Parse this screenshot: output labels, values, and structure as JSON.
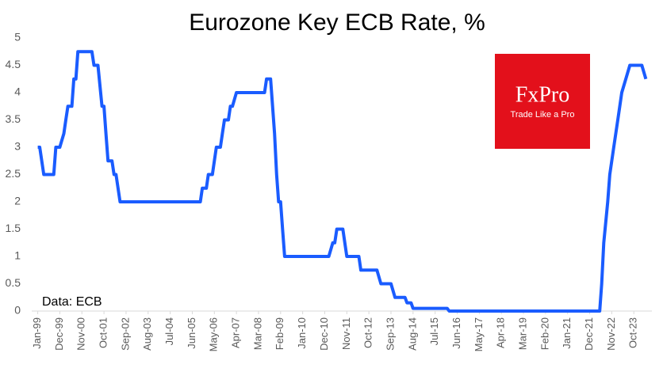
{
  "chart_data": {
    "type": "line",
    "title": "Eurozone Key ECB Rate, %",
    "annotation": "Data: ECB",
    "logo": {
      "name": "FxPro",
      "tagline": "Trade Like a Pro",
      "color": "#e3101b"
    },
    "x": [
      "Jan-99",
      "Feb-99",
      "Apr-99",
      "Sep-99",
      "Oct-99",
      "Dec-99",
      "Feb-00",
      "Mar-00",
      "Apr-00",
      "Jun-00",
      "Jul-00",
      "Aug-00",
      "Sep-00",
      "Apr-01",
      "May-01",
      "Jul-01",
      "Sep-01",
      "Oct-01",
      "Nov-01",
      "Dec-01",
      "Feb-02",
      "Mar-02",
      "Apr-02",
      "Jun-02",
      "Oct-05",
      "Nov-05",
      "Jan-06",
      "Feb-06",
      "Apr-06",
      "May-06",
      "Jun-06",
      "Aug-06",
      "Sep-06",
      "Oct-06",
      "Dec-06",
      "Jan-07",
      "Feb-07",
      "Apr-07",
      "Jun-08",
      "Jul-08",
      "Sep-08",
      "Oct-08",
      "Nov-08",
      "Dec-08",
      "Jan-09",
      "Feb-09",
      "Mar-09",
      "Apr-09",
      "Feb-11",
      "Apr-11",
      "May-11",
      "Jun-11",
      "Sep-11",
      "Oct-11",
      "Nov-11",
      "May-12",
      "Jun-12",
      "Feb-13",
      "Apr-13",
      "Sep-13",
      "Nov-13",
      "Apr-14",
      "May-14",
      "Jul-14",
      "Aug-14",
      "Jan-16",
      "Feb-16",
      "May-22",
      "Jun-22",
      "Jul-22",
      "Sep-22",
      "Oct-22",
      "Dec-22",
      "Feb-23",
      "Mar-23",
      "Apr-23",
      "Jun-23",
      "Aug-23",
      "Feb-24",
      "Apr-24"
    ],
    "series": [
      {
        "name": "ECB rate",
        "color": "#1a5cff",
        "values": [
          3,
          3,
          2.5,
          2.5,
          3,
          3,
          3.25,
          3.5,
          3.75,
          3.75,
          4.25,
          4.25,
          4.75,
          4.75,
          4.5,
          4.5,
          3.75,
          3.75,
          3.25,
          2.75,
          2.75,
          2.5,
          2.5,
          2,
          2,
          2.25,
          2.25,
          2.5,
          2.5,
          2.75,
          3,
          3,
          3.25,
          3.5,
          3.5,
          3.75,
          3.75,
          4,
          4,
          4.25,
          4.25,
          3.75,
          3.25,
          2.5,
          2,
          2,
          1.5,
          1,
          1,
          1.25,
          1.25,
          1.5,
          1.5,
          1.25,
          1,
          1,
          0.75,
          0.75,
          0.5,
          0.5,
          0.25,
          0.25,
          0.15,
          0.15,
          0.05,
          0.05,
          0,
          0,
          0.5,
          1.25,
          2,
          2.5,
          3,
          3.5,
          3.75,
          4,
          4.25,
          4.5,
          4.5,
          4.25
        ]
      }
    ],
    "xlim": [
      "Oct-98",
      "Jul-24"
    ],
    "xticks": [
      "Jan-99",
      "Dec-99",
      "Nov-00",
      "Oct-01",
      "Sep-02",
      "Aug-03",
      "Jul-04",
      "Jun-05",
      "May-06",
      "Apr-07",
      "Mar-08",
      "Feb-09",
      "Jan-10",
      "Dec-10",
      "Nov-11",
      "Oct-12",
      "Sep-13",
      "Aug-14",
      "Jul-15",
      "Jun-16",
      "May-17",
      "Apr-18",
      "Mar-19",
      "Feb-20",
      "Jan-21",
      "Dec-21",
      "Nov-22",
      "Oct-23"
    ],
    "ylim": [
      0,
      5
    ],
    "yticks": [
      0,
      0.5,
      1,
      1.5,
      2,
      2.5,
      3,
      3.5,
      4,
      4.5,
      5
    ],
    "grid": false
  }
}
